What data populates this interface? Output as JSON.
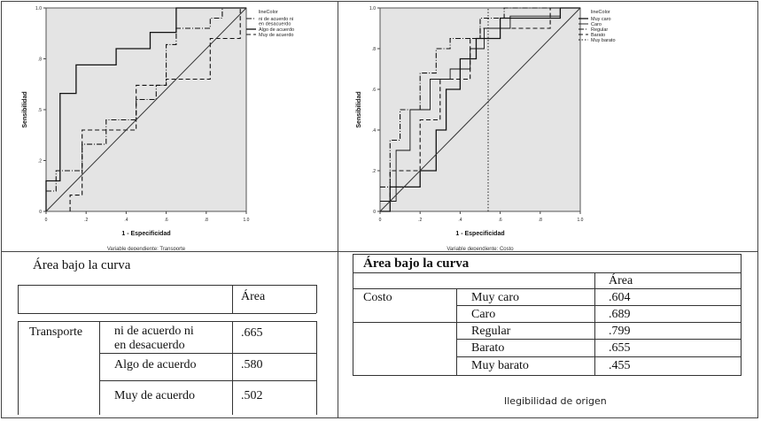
{
  "chart_data": [
    {
      "type": "line",
      "xlabel": "1 - Especificidad",
      "ylabel": "Sensibilidad",
      "caption": "Variable dependiente: Transporte",
      "xlim": [
        0,
        1.0
      ],
      "ylim": [
        0,
        1.0
      ],
      "xticks": [
        "0",
        ".2",
        ".4",
        ".6",
        ".8",
        "1.0"
      ],
      "yticks": [
        "0",
        ".2",
        ".5",
        ".8",
        "1.0"
      ],
      "legend_title": "lineColor",
      "legend_position": "top-right",
      "series": [
        {
          "name": "ni de acuerdo ni en desacuerdo",
          "style": "dashdot",
          "x": [
            0,
            0.05,
            0.05,
            0.18,
            0.18,
            0.3,
            0.3,
            0.45,
            0.45,
            0.55,
            0.55,
            0.6,
            0.6,
            0.65,
            0.65,
            0.82,
            0.82,
            0.88,
            0.88,
            1.0
          ],
          "y": [
            0.1,
            0.1,
            0.2,
            0.2,
            0.33,
            0.33,
            0.45,
            0.45,
            0.55,
            0.55,
            0.62,
            0.62,
            0.82,
            0.82,
            0.9,
            0.9,
            0.95,
            0.95,
            1.0,
            1.0
          ]
        },
        {
          "name": "Algo de acuerdo",
          "style": "solid",
          "x": [
            0,
            0,
            0.07,
            0.07,
            0.15,
            0.15,
            0.35,
            0.35,
            0.52,
            0.52,
            0.65,
            0.65,
            1.0
          ],
          "y": [
            0,
            0.15,
            0.15,
            0.58,
            0.58,
            0.72,
            0.72,
            0.8,
            0.8,
            0.88,
            0.88,
            1.0,
            1.0
          ]
        },
        {
          "name": "Muy de acuerdo",
          "style": "dashed",
          "x": [
            0.12,
            0.12,
            0.18,
            0.18,
            0.45,
            0.45,
            0.6,
            0.6,
            0.82,
            0.82,
            0.97,
            0.97,
            1.0
          ],
          "y": [
            0,
            0.08,
            0.08,
            0.4,
            0.4,
            0.62,
            0.62,
            0.65,
            0.65,
            0.85,
            0.85,
            1.0,
            1.0
          ]
        },
        {
          "name": "",
          "style": "reference",
          "x": [
            0,
            1
          ],
          "y": [
            0,
            1
          ]
        }
      ]
    },
    {
      "type": "line",
      "xlabel": "1 - Especificidad",
      "ylabel": "Sensibilidad",
      "caption": "Variable dependiente: Costo",
      "xlim": [
        0,
        1.0
      ],
      "ylim": [
        0,
        1.0
      ],
      "xticks": [
        "0",
        ".2",
        ".4",
        ".6",
        ".8",
        "1.0"
      ],
      "yticks": [
        "0",
        ".2",
        ".4",
        ".6",
        ".8",
        "1.0"
      ],
      "legend_title": "lineColor",
      "legend_position": "top-right",
      "series": [
        {
          "name": "Muy caro",
          "style": "solid",
          "x": [
            0,
            0.05,
            0.05,
            0.2,
            0.2,
            0.28,
            0.28,
            0.33,
            0.33,
            0.4,
            0.4,
            0.48,
            0.48,
            0.6,
            0.6,
            0.9,
            0.9,
            1.0
          ],
          "y": [
            0,
            0,
            0.12,
            0.12,
            0.2,
            0.2,
            0.4,
            0.4,
            0.6,
            0.6,
            0.75,
            0.75,
            0.85,
            0.85,
            0.95,
            0.95,
            1.0,
            1.0
          ]
        },
        {
          "name": "Caro",
          "style": "solid-thin",
          "x": [
            0,
            0.08,
            0.08,
            0.15,
            0.15,
            0.25,
            0.25,
            0.35,
            0.35,
            0.45,
            0.45,
            0.52,
            0.52,
            0.65,
            0.65,
            0.9,
            0.9,
            1.0
          ],
          "y": [
            0.05,
            0.05,
            0.3,
            0.3,
            0.5,
            0.5,
            0.65,
            0.65,
            0.7,
            0.7,
            0.8,
            0.8,
            0.9,
            0.9,
            0.96,
            0.96,
            1.0,
            1.0
          ]
        },
        {
          "name": "Regular",
          "style": "dashdot",
          "x": [
            0,
            0.05,
            0.05,
            0.1,
            0.1,
            0.2,
            0.2,
            0.28,
            0.28,
            0.35,
            0.35,
            0.5,
            0.5,
            0.62,
            0.62,
            1.0
          ],
          "y": [
            0.12,
            0.12,
            0.35,
            0.35,
            0.5,
            0.5,
            0.68,
            0.68,
            0.8,
            0.8,
            0.85,
            0.85,
            0.95,
            0.95,
            1.0,
            1.0
          ]
        },
        {
          "name": "Barato",
          "style": "dashed",
          "x": [
            0,
            0.05,
            0.05,
            0.2,
            0.2,
            0.3,
            0.3,
            0.45,
            0.45,
            0.5,
            0.5,
            0.85,
            0.85,
            1.0
          ],
          "y": [
            0.05,
            0.05,
            0.2,
            0.2,
            0.45,
            0.45,
            0.65,
            0.65,
            0.85,
            0.85,
            0.9,
            0.9,
            1.0,
            1.0
          ]
        },
        {
          "name": "Muy barato",
          "style": "dotted",
          "x": [
            0.54,
            0.54
          ],
          "y": [
            0,
            1.0
          ]
        },
        {
          "name": "",
          "style": "reference",
          "x": [
            0,
            1
          ],
          "y": [
            0,
            1
          ]
        }
      ]
    }
  ],
  "tables": {
    "left": {
      "title": "Área bajo la curva",
      "header": "Área",
      "group": "Transporte",
      "rows": [
        {
          "label": "ni de acuerdo ni en desacuerdo",
          "line1": "ni de acuerdo ni",
          "line2": "en desacuerdo",
          "value": ".665"
        },
        {
          "label": "Algo de acuerdo",
          "value": ".580"
        },
        {
          "label": "Muy de acuerdo",
          "value": ".502"
        }
      ]
    },
    "right": {
      "title": "Área bajo la curva",
      "header": "Área",
      "group": "Costo",
      "rows": [
        {
          "label": "Muy caro",
          "value": ".604"
        },
        {
          "label": "Caro",
          "value": ".689"
        },
        {
          "label": "Regular",
          "value": ".799"
        },
        {
          "label": "Barato",
          "value": ".655"
        },
        {
          "label": "Muy barato",
          "value": ".455"
        }
      ],
      "note": "Ilegibilidad de origen"
    }
  }
}
